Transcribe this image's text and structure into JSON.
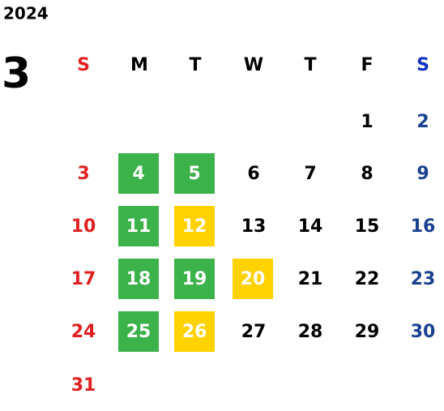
{
  "calendar": {
    "year": "2024",
    "month": "3",
    "weekdays": [
      "S",
      "M",
      "T",
      "W",
      "T",
      "F",
      "S"
    ],
    "weekday_header_colors": [
      "#e02020",
      "#000000",
      "#000000",
      "#000000",
      "#000000",
      "#000000",
      "#1030c0"
    ],
    "day_colors": [
      "#e02020",
      "#000000",
      "#000000",
      "#000000",
      "#000000",
      "#000000",
      "#1a4090"
    ],
    "highlight_text_color": "#ffffff",
    "weeks": [
      [
        null,
        null,
        null,
        null,
        null,
        1,
        2
      ],
      [
        3,
        4,
        5,
        6,
        7,
        8,
        9
      ],
      [
        10,
        11,
        12,
        13,
        14,
        15,
        16
      ],
      [
        17,
        18,
        19,
        20,
        21,
        22,
        23
      ],
      [
        24,
        25,
        26,
        27,
        28,
        29,
        30
      ],
      [
        31,
        null,
        null,
        null,
        null,
        null,
        null
      ]
    ],
    "highlights": [
      [
        null,
        null,
        null,
        null,
        null,
        null,
        null
      ],
      [
        null,
        "#3cb24a",
        "#3cb24a",
        null,
        null,
        null,
        null
      ],
      [
        null,
        "#3cb24a",
        "#ffd200",
        null,
        null,
        null,
        null
      ],
      [
        null,
        "#3cb24a",
        "#3cb24a",
        "#ffd200",
        null,
        null,
        null
      ],
      [
        null,
        "#3cb24a",
        "#ffd200",
        null,
        null,
        null,
        null
      ],
      [
        null,
        null,
        null,
        null,
        null,
        null,
        null
      ]
    ]
  }
}
